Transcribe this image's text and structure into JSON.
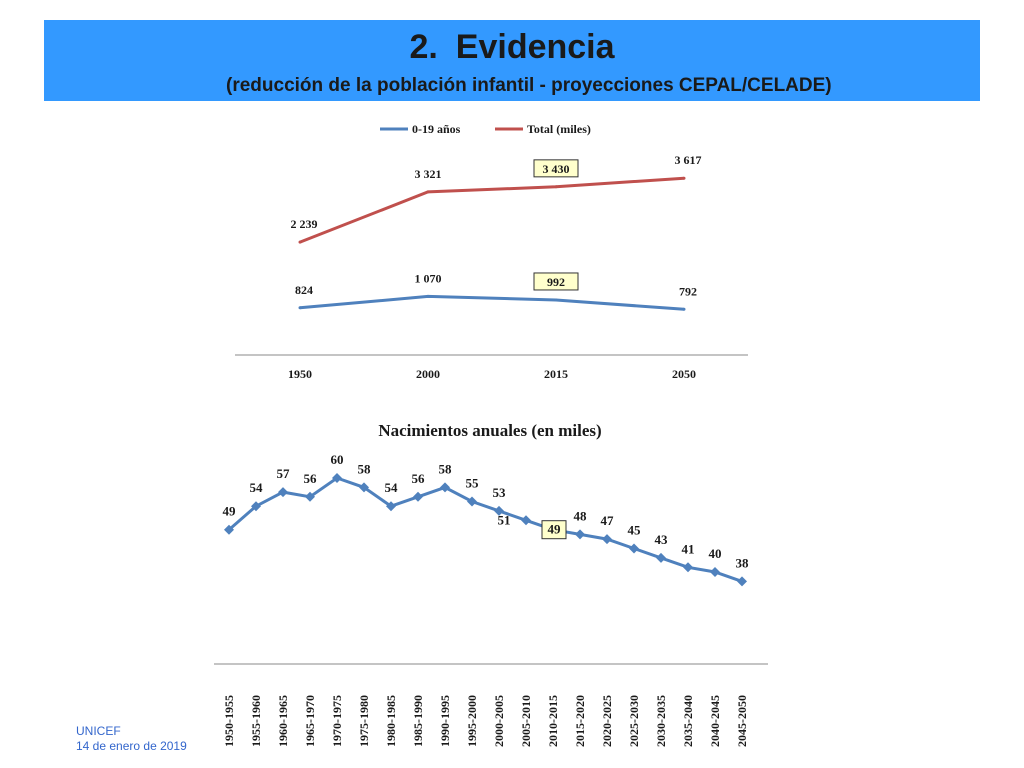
{
  "header": {
    "number": "2.",
    "title": "Evidencia",
    "subtitle": "(reducción de la población infantil - proyecciones CEPAL/CELADE)"
  },
  "footer": {
    "org": "UNICEF",
    "date": "14 de enero de 2019"
  },
  "colors": {
    "banner": "#3399ff",
    "series_children": "#4f81bd",
    "series_total": "#c0504d",
    "highlight_box": "#ffffcc"
  },
  "chart_data": [
    {
      "type": "line",
      "title": "",
      "categories": [
        "1950",
        "2000",
        "2015",
        "2050"
      ],
      "series": [
        {
          "name": "0-19 años",
          "values": [
            824,
            1070,
            992,
            792
          ],
          "labels": [
            "824",
            "1 070",
            "992",
            "792"
          ],
          "highlight_index": 2
        },
        {
          "name": "Total (miles)",
          "values": [
            2239,
            3321,
            3430,
            3617
          ],
          "labels": [
            "2 239",
            "3 321",
            "3 430",
            "3 617"
          ],
          "highlight_index": 2
        }
      ],
      "legend": "top",
      "grid": false
    },
    {
      "type": "line",
      "title": "Nacimientos anuales (en miles)",
      "categories": [
        "1950-1955",
        "1955-1960",
        "1960-1965",
        "1965-1970",
        "1970-1975",
        "1975-1980",
        "1980-1985",
        "1985-1990",
        "1990-1995",
        "1995-2000",
        "2000-2005",
        "2005-2010",
        "2010-2015",
        "2015-2020",
        "2020-2025",
        "2025-2030",
        "2030-2035",
        "2035-2040",
        "2040-2045",
        "2045-2050"
      ],
      "series": [
        {
          "name": "",
          "values": [
            49,
            54,
            57,
            56,
            60,
            58,
            54,
            56,
            58,
            55,
            53,
            51,
            49,
            48,
            47,
            45,
            43,
            41,
            40,
            38
          ],
          "markers": "diamond",
          "highlight_index": 12
        }
      ],
      "legend": "none",
      "grid": false
    }
  ]
}
